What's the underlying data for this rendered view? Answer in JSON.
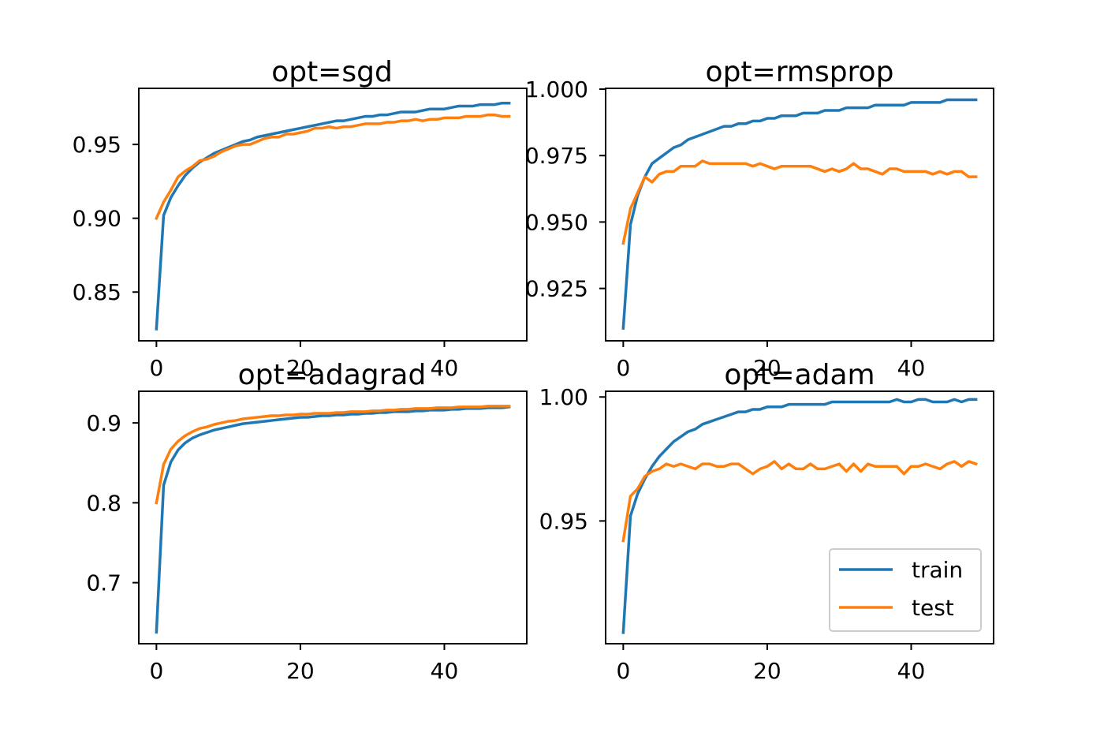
{
  "chart_data": [
    {
      "type": "line",
      "title": "opt=sgd",
      "xlabel": "",
      "ylabel": "",
      "xlim": [
        -2.45,
        51.45
      ],
      "ylim": [
        0.817,
        0.988
      ],
      "xticks": [
        0,
        20,
        40
      ],
      "yticks": [
        0.85,
        0.9,
        0.95
      ],
      "ytick_labels": [
        "0.85",
        "0.90",
        "0.95"
      ],
      "series": [
        {
          "name": "train",
          "color": "#1f77b4",
          "values": [
            0.825,
            0.902,
            0.914,
            0.922,
            0.929,
            0.934,
            0.938,
            0.941,
            0.944,
            0.946,
            0.948,
            0.95,
            0.952,
            0.953,
            0.955,
            0.956,
            0.957,
            0.958,
            0.959,
            0.96,
            0.961,
            0.962,
            0.963,
            0.964,
            0.965,
            0.966,
            0.966,
            0.967,
            0.968,
            0.969,
            0.969,
            0.97,
            0.97,
            0.971,
            0.972,
            0.972,
            0.972,
            0.973,
            0.974,
            0.974,
            0.974,
            0.975,
            0.976,
            0.976,
            0.976,
            0.977,
            0.977,
            0.977,
            0.978,
            0.978
          ]
        },
        {
          "name": "test",
          "color": "#ff7f0e",
          "values": [
            0.9,
            0.911,
            0.919,
            0.928,
            0.932,
            0.935,
            0.939,
            0.94,
            0.942,
            0.945,
            0.947,
            0.949,
            0.95,
            0.95,
            0.952,
            0.954,
            0.955,
            0.955,
            0.957,
            0.957,
            0.958,
            0.959,
            0.961,
            0.961,
            0.962,
            0.961,
            0.962,
            0.962,
            0.963,
            0.964,
            0.964,
            0.964,
            0.965,
            0.965,
            0.966,
            0.966,
            0.967,
            0.966,
            0.967,
            0.967,
            0.968,
            0.968,
            0.968,
            0.969,
            0.969,
            0.969,
            0.97,
            0.97,
            0.969,
            0.969
          ]
        }
      ]
    },
    {
      "type": "line",
      "title": "opt=rmsprop",
      "xlabel": "",
      "ylabel": "",
      "xlim": [
        -2.45,
        51.45
      ],
      "ylim": [
        0.9053,
        1.0003
      ],
      "xticks": [
        0,
        20,
        40
      ],
      "yticks": [
        0.925,
        0.95,
        0.975,
        1.0
      ],
      "ytick_labels": [
        "0.925",
        "0.950",
        "0.975",
        "1.000"
      ],
      "series": [
        {
          "name": "train",
          "color": "#1f77b4",
          "values": [
            0.91,
            0.949,
            0.96,
            0.967,
            0.972,
            0.974,
            0.976,
            0.978,
            0.979,
            0.981,
            0.982,
            0.983,
            0.984,
            0.985,
            0.986,
            0.986,
            0.987,
            0.987,
            0.988,
            0.988,
            0.989,
            0.989,
            0.99,
            0.99,
            0.99,
            0.991,
            0.991,
            0.991,
            0.992,
            0.992,
            0.992,
            0.993,
            0.993,
            0.993,
            0.993,
            0.994,
            0.994,
            0.994,
            0.994,
            0.994,
            0.995,
            0.995,
            0.995,
            0.995,
            0.995,
            0.996,
            0.996,
            0.996,
            0.996,
            0.996
          ]
        },
        {
          "name": "test",
          "color": "#ff7f0e",
          "values": [
            0.942,
            0.955,
            0.961,
            0.967,
            0.965,
            0.968,
            0.969,
            0.969,
            0.971,
            0.971,
            0.971,
            0.973,
            0.972,
            0.972,
            0.972,
            0.972,
            0.972,
            0.972,
            0.971,
            0.972,
            0.971,
            0.97,
            0.971,
            0.971,
            0.971,
            0.971,
            0.971,
            0.97,
            0.969,
            0.97,
            0.969,
            0.97,
            0.972,
            0.97,
            0.97,
            0.969,
            0.968,
            0.97,
            0.97,
            0.969,
            0.969,
            0.969,
            0.969,
            0.968,
            0.969,
            0.968,
            0.969,
            0.969,
            0.967,
            0.967
          ]
        }
      ]
    },
    {
      "type": "line",
      "title": "opt=adagrad",
      "xlabel": "",
      "ylabel": "",
      "xlim": [
        -2.45,
        51.45
      ],
      "ylim": [
        0.6236,
        0.9396
      ],
      "xticks": [
        0,
        20,
        40
      ],
      "yticks": [
        0.7,
        0.8,
        0.9
      ],
      "ytick_labels": [
        "0.7",
        "0.8",
        "0.9"
      ],
      "series": [
        {
          "name": "train",
          "color": "#1f77b4",
          "values": [
            0.638,
            0.822,
            0.851,
            0.866,
            0.875,
            0.881,
            0.885,
            0.888,
            0.891,
            0.893,
            0.895,
            0.897,
            0.899,
            0.9,
            0.901,
            0.902,
            0.903,
            0.904,
            0.905,
            0.906,
            0.907,
            0.907,
            0.908,
            0.909,
            0.909,
            0.91,
            0.91,
            0.911,
            0.911,
            0.912,
            0.912,
            0.913,
            0.913,
            0.914,
            0.914,
            0.914,
            0.915,
            0.915,
            0.916,
            0.916,
            0.916,
            0.917,
            0.917,
            0.918,
            0.918,
            0.918,
            0.919,
            0.919,
            0.919,
            0.92
          ]
        },
        {
          "name": "test",
          "color": "#ff7f0e",
          "values": [
            0.8,
            0.848,
            0.867,
            0.877,
            0.884,
            0.889,
            0.893,
            0.895,
            0.898,
            0.9,
            0.902,
            0.903,
            0.905,
            0.906,
            0.907,
            0.908,
            0.909,
            0.909,
            0.91,
            0.91,
            0.911,
            0.911,
            0.912,
            0.912,
            0.912,
            0.913,
            0.913,
            0.914,
            0.914,
            0.914,
            0.915,
            0.915,
            0.916,
            0.916,
            0.917,
            0.917,
            0.918,
            0.918,
            0.918,
            0.919,
            0.919,
            0.919,
            0.92,
            0.92,
            0.92,
            0.92,
            0.921,
            0.921,
            0.921,
            0.921
          ]
        }
      ]
    },
    {
      "type": "line",
      "title": "opt=adam",
      "xlabel": "",
      "ylabel": "",
      "xlim": [
        -2.45,
        51.45
      ],
      "ylim": [
        0.9005,
        1.0023
      ],
      "xticks": [
        0,
        20,
        40
      ],
      "yticks": [
        0.95,
        1.0
      ],
      "ytick_labels": [
        "0.95",
        "1.00"
      ],
      "legend": {
        "entries": [
          "train",
          "test"
        ],
        "location": "lower right"
      },
      "series": [
        {
          "name": "train",
          "color": "#1f77b4",
          "values": [
            0.905,
            0.952,
            0.961,
            0.967,
            0.972,
            0.976,
            0.979,
            0.982,
            0.984,
            0.986,
            0.987,
            0.989,
            0.99,
            0.991,
            0.992,
            0.993,
            0.994,
            0.994,
            0.995,
            0.995,
            0.996,
            0.996,
            0.996,
            0.997,
            0.997,
            0.997,
            0.997,
            0.997,
            0.997,
            0.998,
            0.998,
            0.998,
            0.998,
            0.998,
            0.998,
            0.998,
            0.998,
            0.998,
            0.999,
            0.998,
            0.998,
            0.999,
            0.999,
            0.998,
            0.998,
            0.998,
            0.999,
            0.998,
            0.999,
            0.999
          ]
        },
        {
          "name": "test",
          "color": "#ff7f0e",
          "values": [
            0.942,
            0.96,
            0.963,
            0.968,
            0.97,
            0.971,
            0.973,
            0.972,
            0.973,
            0.972,
            0.971,
            0.973,
            0.973,
            0.972,
            0.972,
            0.973,
            0.973,
            0.971,
            0.969,
            0.971,
            0.972,
            0.974,
            0.971,
            0.973,
            0.971,
            0.971,
            0.973,
            0.971,
            0.971,
            0.972,
            0.973,
            0.97,
            0.973,
            0.97,
            0.973,
            0.972,
            0.972,
            0.972,
            0.972,
            0.969,
            0.972,
            0.972,
            0.973,
            0.972,
            0.971,
            0.973,
            0.974,
            0.972,
            0.974,
            0.973
          ]
        }
      ]
    }
  ]
}
